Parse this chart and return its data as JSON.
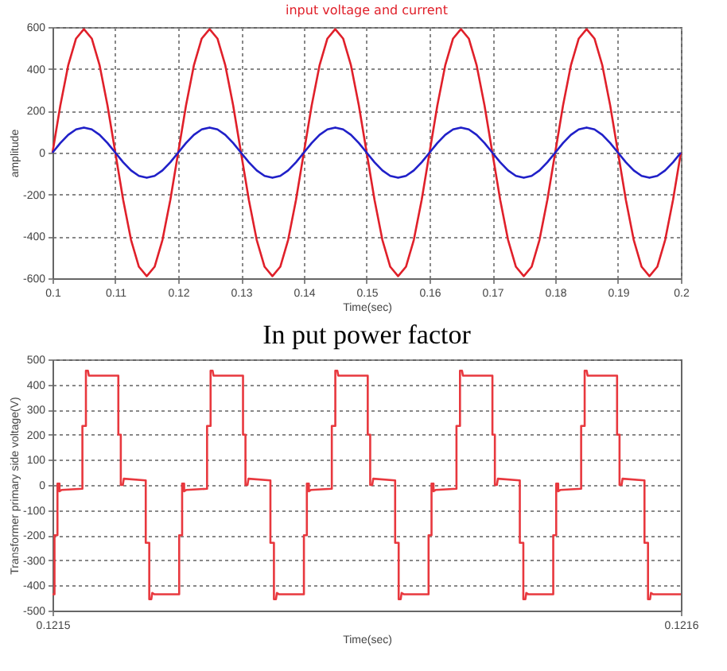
{
  "chart_data": [
    {
      "type": "line",
      "title": "input voltage and current",
      "xlabel": "Time(sec)",
      "ylabel": "amplitude",
      "x": [
        0.1,
        0.10125,
        0.1025,
        0.10375,
        0.105,
        0.10625,
        0.1075,
        0.10875,
        0.11,
        0.11125,
        0.1125,
        0.11375,
        0.115,
        0.11625,
        0.1175,
        0.11875,
        0.12,
        0.12125,
        0.1225,
        0.12375,
        0.125,
        0.12625,
        0.1275,
        0.12875,
        0.13,
        0.13125,
        0.1325,
        0.13375,
        0.135,
        0.13625,
        0.1375,
        0.13875,
        0.14,
        0.14125,
        0.1425,
        0.14375,
        0.145,
        0.14625,
        0.1475,
        0.14875,
        0.15,
        0.15125,
        0.1525,
        0.15375,
        0.155,
        0.15625,
        0.1575,
        0.15875,
        0.16,
        0.16125,
        0.1625,
        0.16375,
        0.165,
        0.16625,
        0.1675,
        0.16875,
        0.17,
        0.17125,
        0.1725,
        0.17375,
        0.175,
        0.17625,
        0.1775,
        0.17875,
        0.18,
        0.18125,
        0.1825,
        0.18375,
        0.185,
        0.18625,
        0.1875,
        0.18875,
        0.19,
        0.19125,
        0.1925,
        0.19375,
        0.195,
        0.19625,
        0.1975,
        0.19875,
        0.2
      ],
      "series": [
        {
          "color": "#e0202a",
          "values": [
            0,
            226,
            417,
            545,
            590,
            545,
            417,
            226,
            0,
            -226,
            -417,
            -545,
            -590,
            -545,
            -417,
            -226,
            0,
            226,
            417,
            545,
            590,
            545,
            417,
            226,
            0,
            -226,
            -417,
            -545,
            -590,
            -545,
            -417,
            -226,
            0,
            226,
            417,
            545,
            590,
            545,
            417,
            226,
            0,
            -226,
            -417,
            -545,
            -590,
            -545,
            -417,
            -226,
            0,
            226,
            417,
            545,
            590,
            545,
            417,
            226,
            0,
            -226,
            -417,
            -545,
            -590,
            -545,
            -417,
            -226,
            0,
            226,
            417,
            545,
            590,
            545,
            417,
            226,
            0,
            -226,
            -417,
            -545,
            -590,
            -545,
            -417,
            -226,
            0
          ]
        },
        {
          "color": "#2020c8",
          "values": [
            0,
            46,
            85,
            111,
            120,
            111,
            85,
            46,
            0,
            -46,
            -85,
            -111,
            -120,
            -111,
            -85,
            -46,
            0,
            46,
            85,
            111,
            120,
            111,
            85,
            46,
            0,
            -46,
            -85,
            -111,
            -120,
            -111,
            -85,
            -46,
            0,
            46,
            85,
            111,
            120,
            111,
            85,
            46,
            0,
            -46,
            -85,
            -111,
            -120,
            -111,
            -85,
            -46,
            0,
            46,
            85,
            111,
            120,
            111,
            85,
            46,
            0,
            -46,
            -85,
            -111,
            -120,
            -111,
            -85,
            -46,
            0,
            46,
            85,
            111,
            120,
            111,
            85,
            46,
            0,
            -46,
            -85,
            -111,
            -120,
            -111,
            -85,
            -46,
            0
          ]
        }
      ],
      "xlim": [
        0.1,
        0.2
      ],
      "xticks": [
        0.1,
        0.11,
        0.12,
        0.13,
        0.14,
        0.15,
        0.16,
        0.17,
        0.18,
        0.19,
        0.2
      ],
      "ylim": [
        -600,
        600
      ],
      "yticks": [
        -600,
        -400,
        -200,
        0,
        200,
        400,
        600
      ],
      "grid": true
    },
    {
      "type": "line",
      "title": "In put power factor",
      "xlabel": "Time(sec)",
      "ylabel": "Transformer primary side voltage(V)",
      "series": [
        {
          "color": "#e8383e",
          "x": [
            0.1215,
            0.12150032,
            0.12150032,
            0.12150079,
            0.12150079,
            0.12150111,
            0.12150111,
            0.12150143,
            0.12150476,
            0.12150476,
            0.12150532,
            0.12150532,
            0.12150564,
            0.12150579,
            0.12151048,
            0.12151048,
            0.12151087,
            0.12151087,
            0.12151119,
            0.12151135,
            0.12151484,
            0.12151484,
            0.1215154,
            0.1215154,
            0.12151572,
            0.12151587,
            0.12151619,
            0.12152016,
            0.12152016,
            0.12152063,
            0.12152063,
            0.12152095,
            0.12152095,
            0.12152127,
            0.1215246,
            0.1215246,
            0.12152516,
            0.12152516,
            0.12152548,
            0.12152563,
            0.12153032,
            0.12153032,
            0.12153071,
            0.12153071,
            0.12153103,
            0.12153119,
            0.12153468,
            0.12153468,
            0.12153524,
            0.12153524,
            0.12153556,
            0.12153571,
            0.12153603,
            0.12154001,
            0.12154001,
            0.12154048,
            0.12154048,
            0.1215408,
            0.1215408,
            0.12154112,
            0.12154445,
            0.12154445,
            0.12154501,
            0.12154501,
            0.12154533,
            0.12154548,
            0.12155017,
            0.12155017,
            0.12155056,
            0.12155056,
            0.12155088,
            0.12155104,
            0.12155453,
            0.12155453,
            0.12155509,
            0.12155509,
            0.12155541,
            0.12155556,
            0.12155588,
            0.12155985,
            0.12155985,
            0.12156032,
            0.12156032,
            0.12156064,
            0.12156064,
            0.12156096,
            0.12156429,
            0.12156429,
            0.12156485,
            0.12156485,
            0.12156517,
            0.12156532,
            0.12157001,
            0.12157001,
            0.1215704,
            0.1215704,
            0.12157072,
            0.12157088,
            0.12157437,
            0.12157437,
            0.12157493,
            0.12157493,
            0.12157525,
            0.1215754,
            0.12157572,
            0.12157969,
            0.12157969,
            0.12158016,
            0.12158016,
            0.12158048,
            0.12158048,
            0.1215808,
            0.12158413,
            0.12158413,
            0.12158469,
            0.12158469,
            0.12158501,
            0.12158516,
            0.12158985,
            0.12158985,
            0.12159024,
            0.12159024,
            0.12159056,
            0.12159072,
            0.12159421,
            0.12159421,
            0.12159477,
            0.12159477,
            0.12159509,
            0.12159524,
            0.12159556,
            0.1216
          ],
          "values": [
            -435,
            -435,
            -200,
            -200,
            5,
            5,
            -25,
            -20,
            -15,
            235,
            235,
            455,
            455,
            435,
            435,
            200,
            200,
            0,
            0,
            25,
            18,
            -230,
            -230,
            -455,
            -455,
            -430,
            -435,
            -435,
            -200,
            -200,
            5,
            5,
            -25,
            -20,
            -15,
            235,
            235,
            455,
            455,
            435,
            435,
            200,
            200,
            0,
            0,
            25,
            18,
            -230,
            -230,
            -455,
            -455,
            -430,
            -435,
            -435,
            -200,
            -200,
            5,
            5,
            -25,
            -20,
            -15,
            235,
            235,
            455,
            455,
            435,
            435,
            200,
            200,
            0,
            0,
            25,
            18,
            -230,
            -230,
            -455,
            -455,
            -430,
            -435,
            -435,
            -200,
            -200,
            5,
            5,
            -25,
            -20,
            -15,
            235,
            235,
            455,
            455,
            435,
            435,
            200,
            200,
            0,
            0,
            25,
            18,
            -230,
            -230,
            -455,
            -455,
            -430,
            -435,
            -435,
            -200,
            -200,
            5,
            5,
            -25,
            -20,
            -15,
            235,
            235,
            455,
            455,
            435,
            435,
            200,
            200,
            0,
            0,
            25,
            18,
            -230,
            -230,
            -455,
            -455,
            -430,
            -435,
            -435
          ]
        }
      ],
      "xlim": [
        0.1215,
        0.1216
      ],
      "xticks": [
        0.1215,
        0.1216
      ],
      "ylim": [
        -500,
        500
      ],
      "yticks": [
        -500,
        -400,
        -300,
        -200,
        -100,
        0,
        100,
        200,
        300,
        400,
        500
      ],
      "grid": "y"
    }
  ]
}
